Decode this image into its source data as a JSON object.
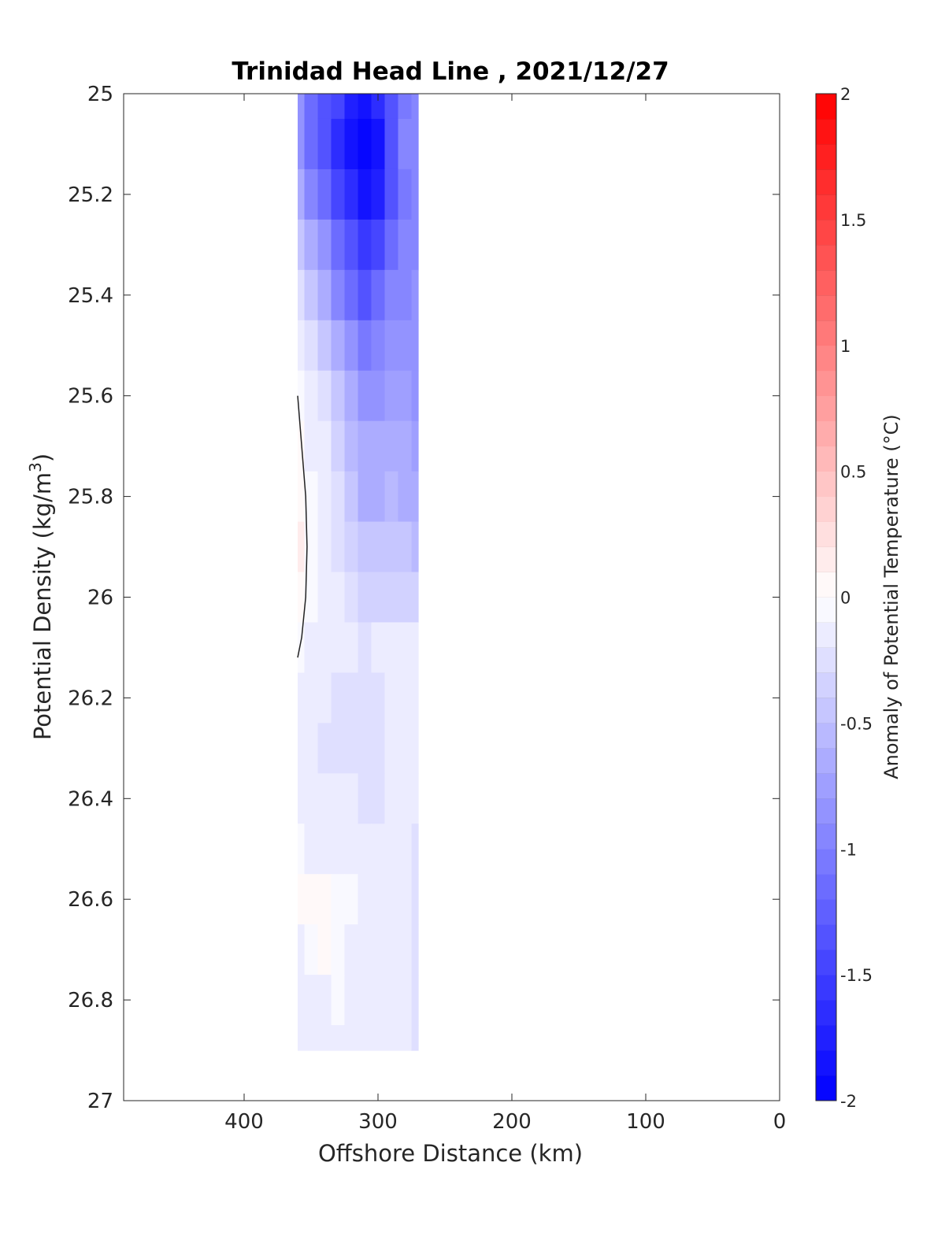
{
  "chart_data": {
    "type": "heatmap",
    "title": "Trinidad Head Line , 2021/12/27",
    "xlabel": "Offshore Distance (km)",
    "ylabel": "Potential Density (kg/m³)",
    "ylabel_parts": [
      "Potential Density (kg/m",
      "3",
      ")"
    ],
    "x_axis": {
      "range": [
        490,
        0
      ],
      "reversed": true,
      "ticks": [
        400,
        300,
        200,
        100,
        0
      ],
      "tick_labels": [
        "400",
        "300",
        "200",
        "100",
        "0"
      ]
    },
    "y_axis": {
      "range": [
        25,
        27
      ],
      "reversed": true,
      "ticks": [
        25,
        25.2,
        25.4,
        25.6,
        25.8,
        26,
        26.2,
        26.4,
        26.6,
        26.8,
        27
      ],
      "tick_labels": [
        "25",
        "25.2",
        "25.4",
        "25.6",
        "25.8",
        "26",
        "26.2",
        "26.4",
        "26.6",
        "26.8",
        "27"
      ]
    },
    "grid": false,
    "colorbar": {
      "label": "Anomaly of Potential Temperature (°C)",
      "range": [
        -2,
        2
      ],
      "levels": 40,
      "ticks": [
        2,
        1.5,
        1,
        0.5,
        0,
        -0.5,
        -1,
        -1.5,
        -2
      ],
      "tick_labels": [
        "2",
        "1.5",
        "1",
        "0.5",
        "0",
        "-0.5",
        "-1",
        "-1.5",
        "-2"
      ],
      "color_low": "#0000ff",
      "color_mid": "#ffffff",
      "color_high": "#ff0000",
      "placement": "right"
    },
    "data_coverage": {
      "x": [
        270,
        360
      ],
      "y": [
        25,
        26.9
      ]
    },
    "columns_x": [
      360,
      350,
      340,
      330,
      320,
      310,
      300,
      290,
      280,
      270
    ],
    "rows_y": [
      25.0,
      25.1,
      25.2,
      25.3,
      25.4,
      25.5,
      25.6,
      25.7,
      25.8,
      25.9,
      26.0,
      26.1,
      26.2,
      26.3,
      26.4,
      26.5,
      26.6,
      26.7,
      26.8,
      26.9
    ],
    "values": [
      [
        -0.9,
        -1.1,
        -1.3,
        -1.5,
        -1.75,
        -1.9,
        -1.7,
        -1.3,
        -1.05,
        -1.0
      ],
      [
        -0.9,
        -1.1,
        -1.35,
        -1.6,
        -1.85,
        -2.0,
        -1.8,
        -1.3,
        -1.0,
        -1.0
      ],
      [
        -0.7,
        -0.95,
        -1.2,
        -1.45,
        -1.7,
        -1.9,
        -1.75,
        -1.3,
        -1.05,
        -1.0
      ],
      [
        -0.45,
        -0.65,
        -0.9,
        -1.15,
        -1.4,
        -1.55,
        -1.45,
        -1.15,
        -1.0,
        -0.95
      ],
      [
        -0.25,
        -0.45,
        -0.7,
        -0.95,
        -1.15,
        -1.3,
        -1.2,
        -1.0,
        -0.95,
        -0.9
      ],
      [
        -0.1,
        -0.25,
        -0.45,
        -0.7,
        -0.9,
        -1.05,
        -0.95,
        -0.85,
        -0.85,
        -0.85
      ],
      [
        -0.05,
        -0.15,
        -0.3,
        -0.5,
        -0.7,
        -0.85,
        -0.8,
        -0.75,
        -0.75,
        -0.8
      ],
      [
        0.0,
        -0.1,
        -0.2,
        -0.35,
        -0.55,
        -0.7,
        -0.7,
        -0.65,
        -0.7,
        -0.75
      ],
      [
        0.05,
        -0.05,
        -0.15,
        -0.3,
        -0.45,
        -0.6,
        -0.6,
        -0.55,
        -0.6,
        -0.65
      ],
      [
        0.1,
        -0.05,
        -0.15,
        -0.25,
        -0.35,
        -0.5,
        -0.5,
        -0.45,
        -0.5,
        -0.55
      ],
      [
        0.05,
        -0.05,
        -0.15,
        -0.2,
        -0.3,
        -0.4,
        -0.4,
        -0.35,
        -0.35,
        -0.4
      ],
      [
        -0.05,
        -0.1,
        -0.1,
        -0.15,
        -0.2,
        -0.3,
        -0.2,
        -0.15,
        -0.15,
        -0.2
      ],
      [
        -0.15,
        -0.15,
        -0.2,
        -0.25,
        -0.3,
        -0.3,
        -0.25,
        -0.15,
        -0.1,
        -0.15
      ],
      [
        -0.2,
        -0.2,
        -0.25,
        -0.3,
        -0.3,
        -0.3,
        -0.25,
        -0.2,
        -0.15,
        -0.2
      ],
      [
        -0.2,
        -0.2,
        -0.2,
        -0.2,
        -0.2,
        -0.25,
        -0.25,
        -0.2,
        -0.2,
        -0.2
      ],
      [
        -0.05,
        -0.1,
        -0.1,
        -0.1,
        -0.15,
        -0.15,
        -0.15,
        -0.15,
        -0.2,
        -0.25
      ],
      [
        0.0,
        0.0,
        0.0,
        -0.05,
        -0.05,
        -0.1,
        -0.15,
        -0.15,
        -0.2,
        -0.3
      ],
      [
        -0.1,
        -0.05,
        0.0,
        -0.05,
        -0.1,
        -0.1,
        -0.15,
        -0.15,
        -0.2,
        -0.3
      ],
      [
        -0.1,
        -0.1,
        -0.1,
        -0.05,
        -0.1,
        -0.15,
        -0.15,
        -0.1,
        -0.15,
        -0.3
      ],
      [
        -0.1,
        -0.1,
        -0.1,
        -0.1,
        -0.15,
        -0.15,
        -0.1,
        -0.1,
        -0.15,
        -0.3
      ]
    ],
    "zero_contour": [
      [
        360,
        25.6
      ],
      [
        357,
        25.7
      ],
      [
        354,
        25.8
      ],
      [
        353,
        25.9
      ],
      [
        354,
        26.0
      ],
      [
        357,
        26.08
      ],
      [
        360,
        26.12
      ]
    ]
  }
}
